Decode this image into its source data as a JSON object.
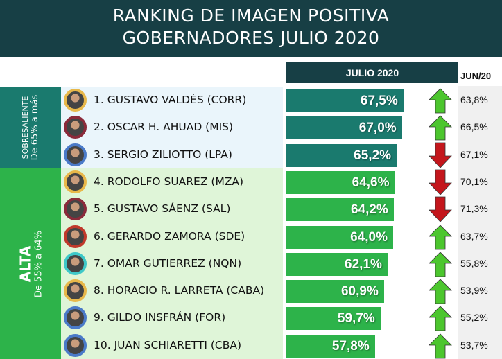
{
  "title": {
    "line1": "RANKING DE IMAGEN POSITIVA",
    "line2": "GOBERNADORES JULIO 2020"
  },
  "columns": {
    "current": "JULIO 2020",
    "previous": "JUN/20"
  },
  "bands": [
    {
      "label": "SOBRESALIENTE",
      "range": "De 65% a más",
      "color": "#1a7a6e"
    },
    {
      "label": "ALTA",
      "range": "De 55% a 64%",
      "color": "#2db34a"
    }
  ],
  "colors": {
    "up": "#4cc62e",
    "down": "#c4161c",
    "bar_sobresaliente": "#1a7a6e",
    "bar_alta": "#2db34a"
  },
  "chart_data": {
    "type": "bar",
    "orientation": "horizontal",
    "categories": [
      "1. GUSTAVO VALDÉS  (CORR)",
      "2. OSCAR H. AHUAD  (MIS)",
      "3. SERGIO ZILIOTTO (LPA)",
      "4. RODOLFO SUAREZ (MZA)",
      "5. GUSTAVO SÁENZ (SAL)",
      "6. GERARDO ZAMORA (SDE)",
      "7. OMAR GUTIERREZ (NQN)",
      "8. HORACIO R. LARRETA (CABA)",
      "9. GILDO INSFRÁN (FOR)",
      "10. JUAN SCHIARETTI (CBA)"
    ],
    "series": [
      {
        "name": "JULIO 2020",
        "values": [
          67.5,
          67.0,
          65.2,
          64.6,
          64.2,
          64.0,
          62.1,
          60.9,
          59.7,
          57.8
        ],
        "labels": [
          "67,5%",
          "67,0%",
          "65,2%",
          "64,6%",
          "64,2%",
          "64,0%",
          "62,1%",
          "60,9%",
          "59,7%",
          "57,8%"
        ]
      },
      {
        "name": "JUN/20",
        "values": [
          63.8,
          66.5,
          67.1,
          70.1,
          71.3,
          63.7,
          55.8,
          53.9,
          55.2,
          53.7
        ],
        "labels": [
          "63,8%",
          "66,5%",
          "67,1%",
          "70,1%",
          "71,3%",
          "63,7%",
          "55,8%",
          "53,9%",
          "55,2%",
          "53,7%"
        ]
      }
    ],
    "trend": [
      "up",
      "up",
      "down",
      "down",
      "down",
      "up",
      "up",
      "up",
      "up",
      "up"
    ],
    "avatar_ring_colors": [
      "#e8b84a",
      "#8a2a3a",
      "#4a7ac8",
      "#e8b84a",
      "#8a2a3a",
      "#c0392b",
      "#3ec8c8",
      "#e8b84a",
      "#4a7ac8",
      "#4a7ac8"
    ]
  }
}
